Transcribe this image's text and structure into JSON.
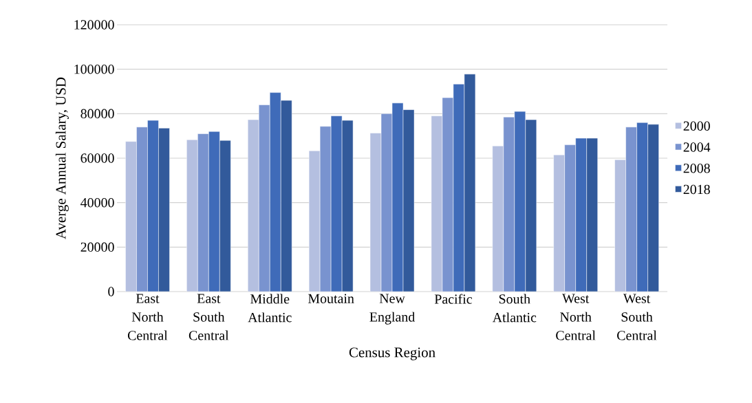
{
  "chart_data": {
    "type": "bar",
    "xlabel": "Census Region",
    "ylabel": "Averge Annual Salary, USD",
    "categories": [
      "East North Central",
      "East South Central",
      "Middle Atlantic",
      "Moutain",
      "New England",
      "Pacific",
      "South Atlantic",
      "West North Central",
      "West South Central"
    ],
    "series": [
      {
        "name": "2000",
        "color": "#b4bfe0",
        "values": [
          67500,
          68300,
          77300,
          63300,
          71300,
          79000,
          65500,
          61500,
          59300
        ]
      },
      {
        "name": "2004",
        "color": "#7993cf",
        "values": [
          74000,
          71000,
          84000,
          74300,
          80000,
          87200,
          78500,
          66000,
          74000
        ]
      },
      {
        "name": "2008",
        "color": "#3f6bb9",
        "values": [
          77000,
          72000,
          89500,
          79000,
          84800,
          93300,
          81000,
          69000,
          76000
        ]
      },
      {
        "name": "2018",
        "color": "#325a9b",
        "values": [
          73500,
          68000,
          86000,
          77000,
          81800,
          97800,
          77300,
          69000,
          75200
        ]
      }
    ],
    "ylim": [
      0,
      120000
    ],
    "yticks": [
      0,
      20000,
      40000,
      60000,
      80000,
      100000,
      120000
    ],
    "grid": "y",
    "legend": "right"
  }
}
